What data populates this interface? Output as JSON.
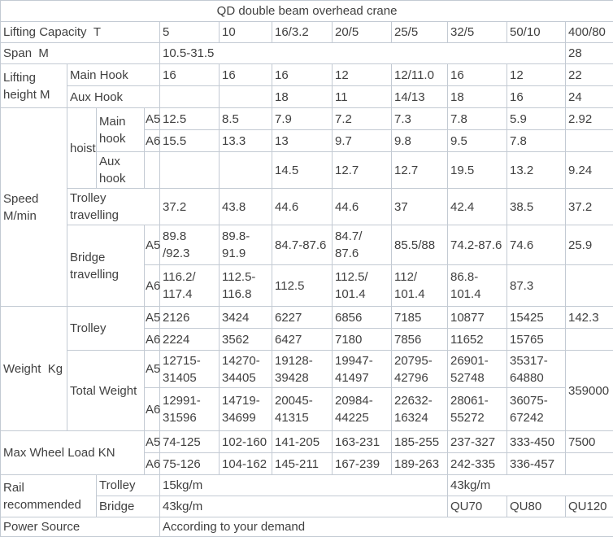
{
  "title": "QD double beam overhead crane",
  "colors": {
    "border": "#c3cad3",
    "text": "#404040",
    "background": "#ffffff"
  },
  "table": {
    "rows": [
      [
        {
          "t": "QD double beam overhead crane",
          "cs": 12,
          "n": "table-title",
          "a": "c"
        }
      ],
      [
        {
          "t": "Lifting Capacity  T",
          "cs": 4,
          "n": "row-label-lifting-capacity"
        },
        {
          "t": "5",
          "n": "capacity-header"
        },
        {
          "t": "10",
          "n": "capacity-header"
        },
        {
          "t": "16/3.2",
          "n": "capacity-header"
        },
        {
          "t": "20/5",
          "n": "capacity-header"
        },
        {
          "t": "25/5",
          "n": "capacity-header"
        },
        {
          "t": "32/5",
          "n": "capacity-header"
        },
        {
          "t": "50/10",
          "n": "capacity-header"
        },
        {
          "t": "400/80",
          "n": "capacity-header"
        }
      ],
      [
        {
          "t": "Span  M",
          "cs": 4,
          "n": "row-label-span"
        },
        {
          "t": "10.5-31.5",
          "cs": 7
        },
        {
          "t": "28"
        }
      ],
      [
        {
          "t": "Lifting\nheight M",
          "rs": 2,
          "n": "row-label-lifting-height"
        },
        {
          "t": "Main Hook",
          "cs": 3,
          "n": "row-label-main-hook"
        },
        {
          "t": "16"
        },
        {
          "t": "16"
        },
        {
          "t": "16"
        },
        {
          "t": "12"
        },
        {
          "t": "12/11.0"
        },
        {
          "t": "16"
        },
        {
          "t": "12"
        },
        {
          "t": "22"
        }
      ],
      [
        {
          "t": "Aux Hook",
          "cs": 3,
          "n": "row-label-aux-hook"
        },
        {
          "t": ""
        },
        {
          "t": ""
        },
        {
          "t": "18"
        },
        {
          "t": "11"
        },
        {
          "t": "14/13"
        },
        {
          "t": "18"
        },
        {
          "t": "16"
        },
        {
          "t": "24"
        }
      ],
      [
        {
          "t": "Speed\nM/min",
          "rs": 6,
          "n": "row-label-speed"
        },
        {
          "t": "hoist",
          "rs": 3,
          "n": "row-label-hoist"
        },
        {
          "t": "Main\nhook",
          "rs": 2,
          "n": "row-label-main-hook"
        },
        {
          "t": "A5",
          "n": "class-label-a5"
        },
        {
          "t": "12.5"
        },
        {
          "t": "8.5"
        },
        {
          "t": "7.9"
        },
        {
          "t": "7.2"
        },
        {
          "t": "7.3"
        },
        {
          "t": "7.8"
        },
        {
          "t": "5.9"
        },
        {
          "t": "2.92"
        }
      ],
      [
        {
          "t": "A6",
          "n": "class-label-a6"
        },
        {
          "t": "15.5"
        },
        {
          "t": "13.3"
        },
        {
          "t": "13"
        },
        {
          "t": "9.7"
        },
        {
          "t": "9.8"
        },
        {
          "t": "9.5"
        },
        {
          "t": "7.8"
        },
        {
          "t": ""
        }
      ],
      [
        {
          "t": "Aux\nhook",
          "n": "row-label-aux-hook"
        },
        {
          "t": ""
        },
        {
          "t": ""
        },
        {
          "t": ""
        },
        {
          "t": "14.5"
        },
        {
          "t": "12.7"
        },
        {
          "t": "12.7"
        },
        {
          "t": "19.5"
        },
        {
          "t": "13.2"
        },
        {
          "t": "9.24"
        }
      ],
      [
        {
          "t": "Trolley\ntravelling",
          "cs": 3,
          "n": "row-label-trolley-travelling"
        },
        {
          "t": "37.2"
        },
        {
          "t": "43.8"
        },
        {
          "t": "44.6"
        },
        {
          "t": "44.6"
        },
        {
          "t": "37"
        },
        {
          "t": "42.4"
        },
        {
          "t": "38.5"
        },
        {
          "t": "37.2"
        }
      ],
      [
        {
          "t": "Bridge\ntravelling",
          "cs": 2,
          "rs": 2,
          "n": "row-label-bridge-travelling"
        },
        {
          "t": "A5",
          "n": "class-label-a5"
        },
        {
          "t": "89.8\n/92.3"
        },
        {
          "t": "89.8-91.9"
        },
        {
          "t": "84.7-87.6"
        },
        {
          "t": "84.7/\n87.6"
        },
        {
          "t": "85.5/88"
        },
        {
          "t": "74.2-87.6"
        },
        {
          "t": "74.6"
        },
        {
          "t": "25.9"
        }
      ],
      [
        {
          "t": "A6",
          "n": "class-label-a6"
        },
        {
          "t": "116.2/\n117.4"
        },
        {
          "t": "112.5-\n116.8"
        },
        {
          "t": "112.5"
        },
        {
          "t": "112.5/\n101.4"
        },
        {
          "t": "112/\n101.4"
        },
        {
          "t": "86.8-\n101.4"
        },
        {
          "t": "87.3"
        },
        {
          "t": ""
        }
      ],
      [
        {
          "t": "Weight  Kg",
          "rs": 4,
          "n": "row-label-weight"
        },
        {
          "t": "Trolley",
          "cs": 2,
          "rs": 2,
          "n": "row-label-trolley"
        },
        {
          "t": "A5",
          "n": "class-label-a5"
        },
        {
          "t": "2126"
        },
        {
          "t": "3424"
        },
        {
          "t": "6227"
        },
        {
          "t": "6856"
        },
        {
          "t": "7185"
        },
        {
          "t": "10877"
        },
        {
          "t": "15425"
        },
        {
          "t": "142.3"
        }
      ],
      [
        {
          "t": "A6",
          "n": "class-label-a6"
        },
        {
          "t": "2224"
        },
        {
          "t": "3562"
        },
        {
          "t": "6427"
        },
        {
          "t": "7180"
        },
        {
          "t": "7856"
        },
        {
          "t": "11652"
        },
        {
          "t": "15765"
        },
        {
          "t": ""
        }
      ],
      [
        {
          "t": "Total Weight",
          "cs": 2,
          "rs": 2,
          "n": "row-label-total-weight"
        },
        {
          "t": "A5",
          "n": "class-label-a5"
        },
        {
          "t": "12715-\n31405"
        },
        {
          "t": "14270-\n34405"
        },
        {
          "t": "19128-\n39428"
        },
        {
          "t": "19947-\n41497"
        },
        {
          "t": "20795-\n42796"
        },
        {
          "t": "26901-\n52748"
        },
        {
          "t": "35317-\n64880"
        },
        {
          "t": "359000",
          "rs": 2
        }
      ],
      [
        {
          "t": "A6",
          "n": "class-label-a6"
        },
        {
          "t": "12991-\n31596"
        },
        {
          "t": "14719-\n34699"
        },
        {
          "t": "20045-\n41315"
        },
        {
          "t": "20984-\n44225"
        },
        {
          "t": "22632-\n16324"
        },
        {
          "t": "28061-\n55272"
        },
        {
          "t": "36075-\n67242"
        }
      ],
      [
        {
          "t": "Max Wheel Load KN",
          "cs": 3,
          "rs": 2,
          "n": "row-label-max-wheel-load"
        },
        {
          "t": "A5",
          "n": "class-label-a5"
        },
        {
          "t": "74-125"
        },
        {
          "t": "102-160"
        },
        {
          "t": "141-205"
        },
        {
          "t": "163-231"
        },
        {
          "t": "185-255"
        },
        {
          "t": "237-327"
        },
        {
          "t": "333-450"
        },
        {
          "t": "7500"
        }
      ],
      [
        {
          "t": "A6",
          "n": "class-label-a6"
        },
        {
          "t": "75-126"
        },
        {
          "t": "104-162"
        },
        {
          "t": "145-211"
        },
        {
          "t": "167-239"
        },
        {
          "t": "189-263"
        },
        {
          "t": "242-335"
        },
        {
          "t": "336-457"
        },
        {
          "t": ""
        }
      ],
      [
        {
          "t": "Rail\nrecommended",
          "cs": 2,
          "rs": 2,
          "n": "row-label-rail-recommended"
        },
        {
          "t": "Trolley",
          "cs": 2,
          "n": "row-label-trolley"
        },
        {
          "t": "15kg/m",
          "cs": 5,
          "n": "rail-value"
        },
        {
          "t": "43kg/m",
          "cs": 3,
          "n": "rail-value"
        }
      ],
      [
        {
          "t": "Bridge",
          "cs": 2,
          "n": "row-label-bridge"
        },
        {
          "t": "43kg/m",
          "cs": 5,
          "n": "rail-value"
        },
        {
          "t": "QU70",
          "n": "rail-value"
        },
        {
          "t": "QU80",
          "n": "rail-value"
        },
        {
          "t": "QU120",
          "n": "rail-value"
        }
      ],
      [
        {
          "t": "Power Source",
          "cs": 4,
          "n": "row-label-power-source"
        },
        {
          "t": "According to your demand",
          "cs": 8,
          "n": "power-source-value"
        }
      ]
    ]
  }
}
